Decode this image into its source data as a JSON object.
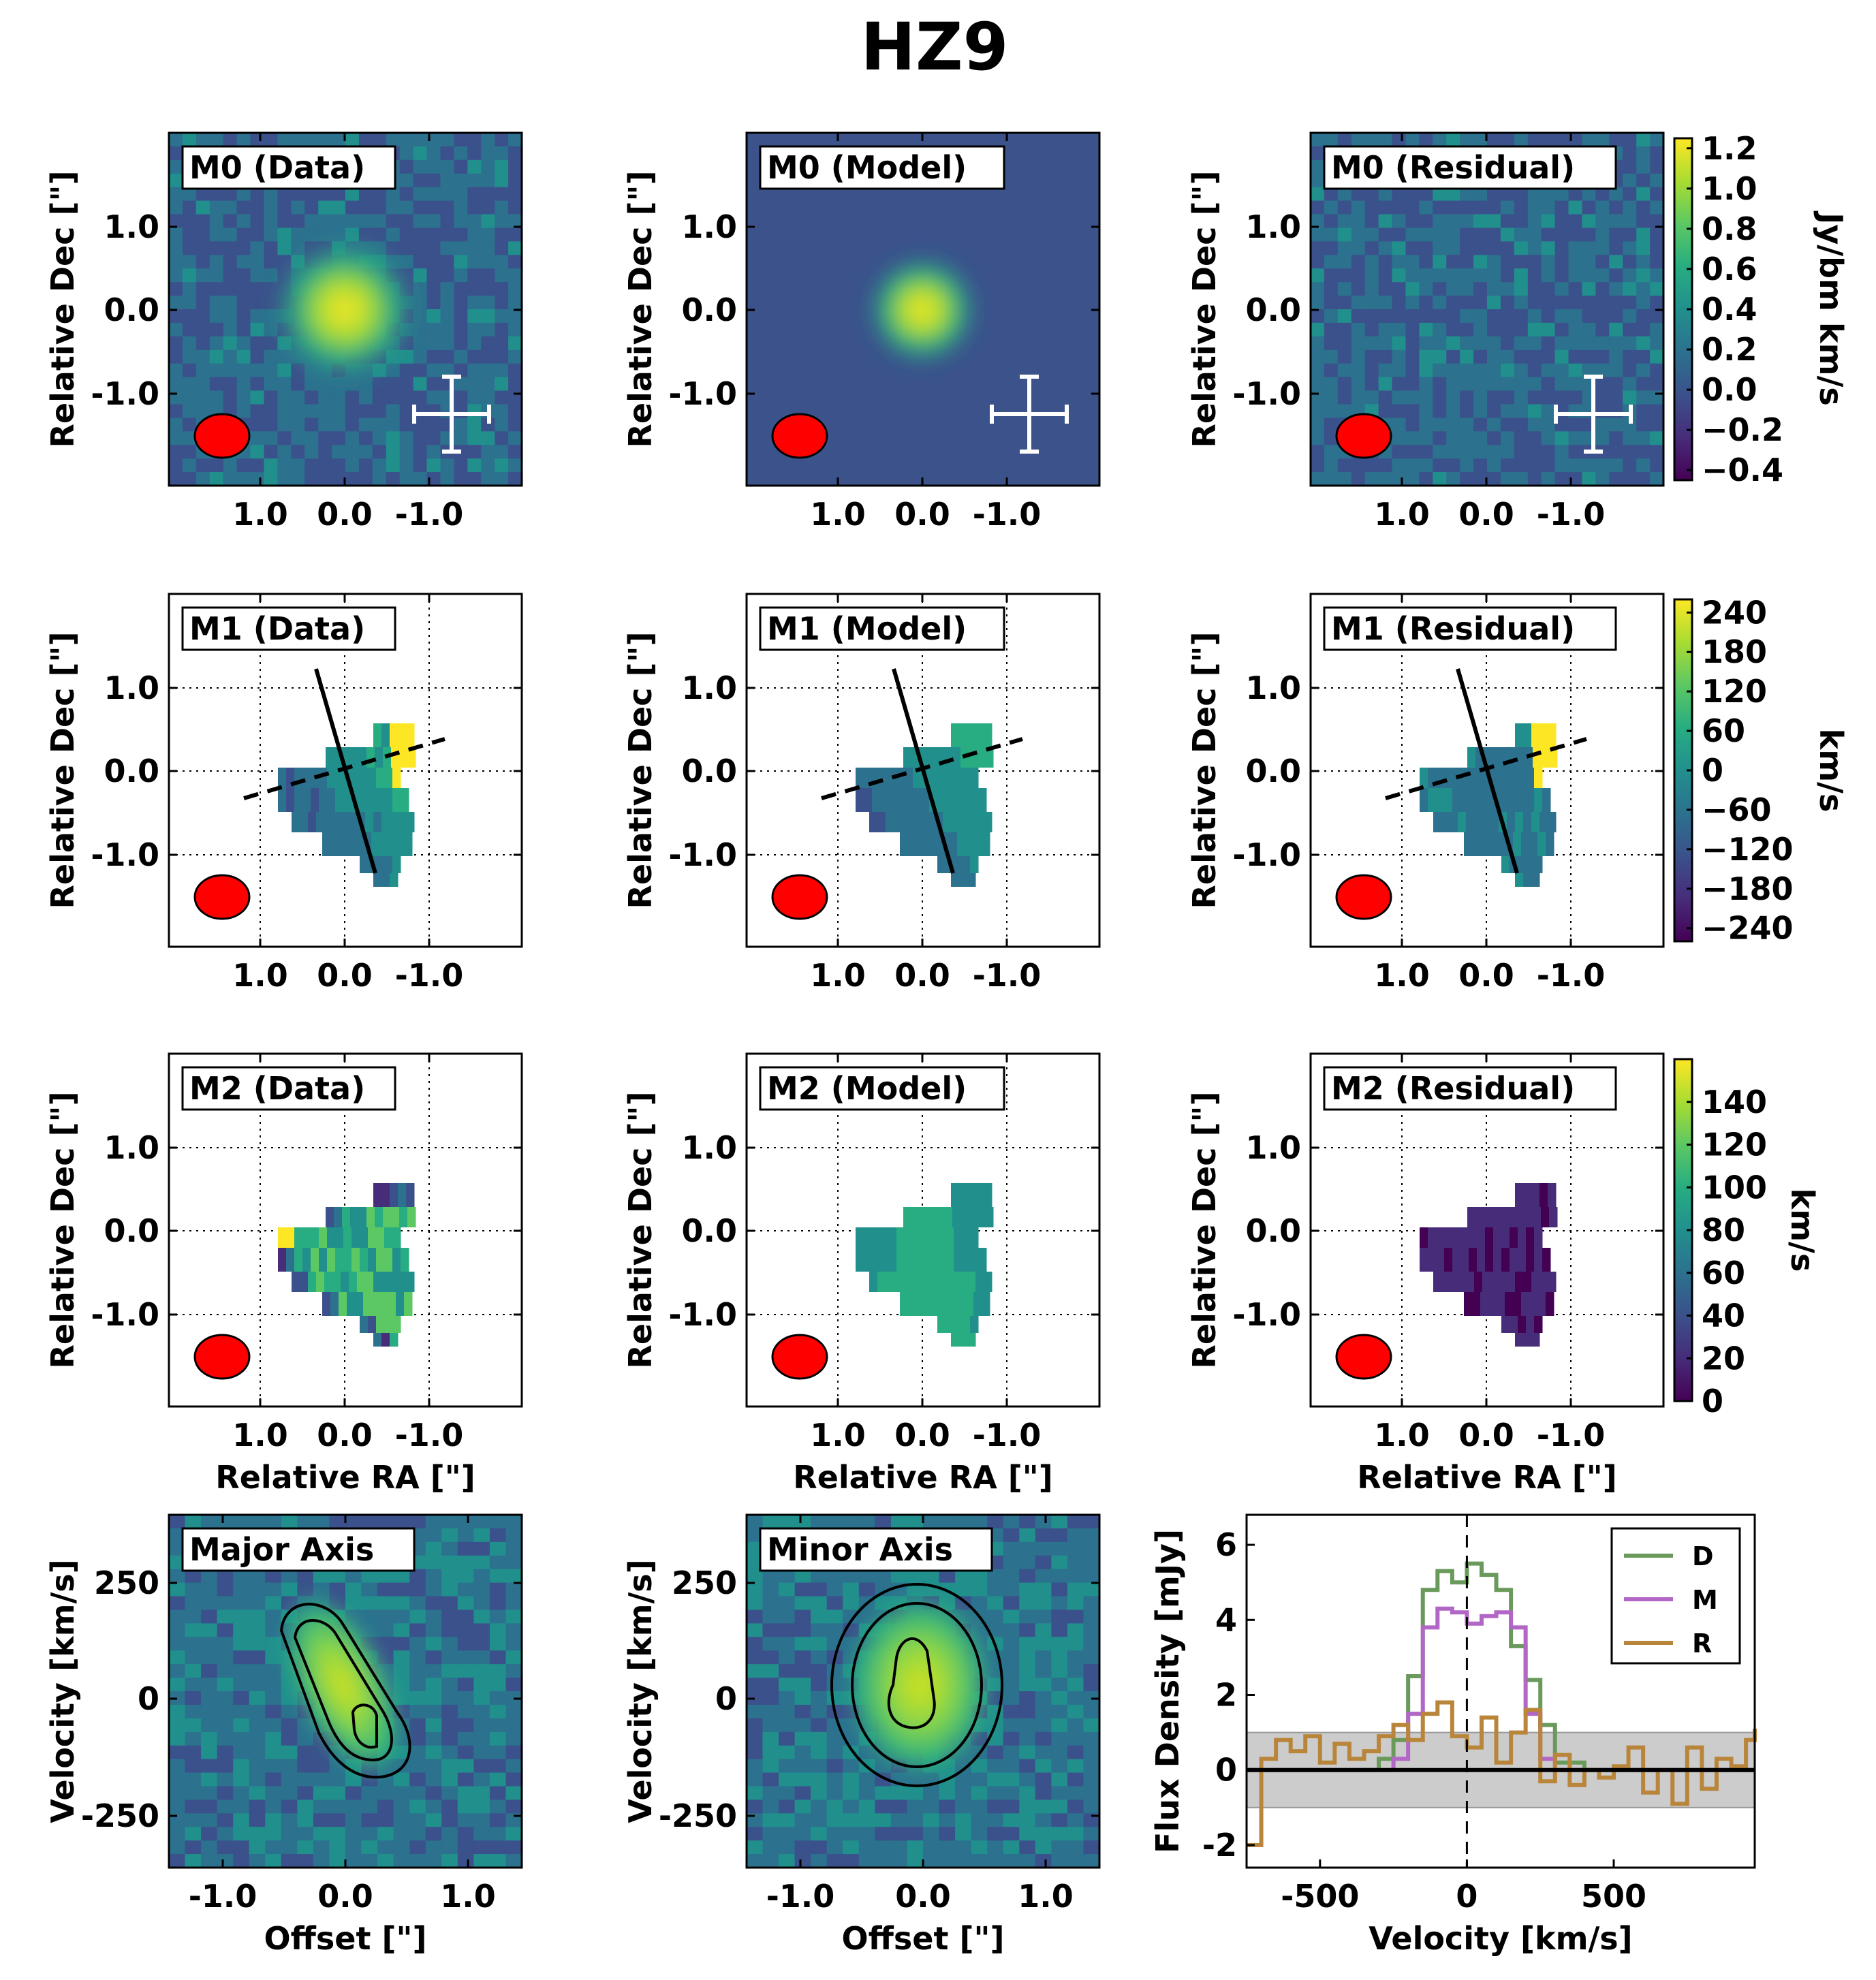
{
  "title": "HZ9",
  "colors": {
    "viridis": [
      "#440154",
      "#472c7a",
      "#3b518b",
      "#2c718e",
      "#21908d",
      "#27ad81",
      "#5cc863",
      "#aadc32",
      "#fde725"
    ],
    "beam": "#ff0000",
    "data_line": "#6a9a5b",
    "model_line": "#b267c6",
    "residual_line": "#b9853a",
    "noise_band": "#cccccc"
  },
  "moment_maps": {
    "ylabel": "Relative Dec [\"]",
    "xlabel": "Relative RA [\"]",
    "xticks": [
      "1.0",
      "0.0",
      "-1.0"
    ],
    "yticks": [
      "1.0",
      "0.0",
      "-1.0"
    ],
    "rows": [
      {
        "row": "M0",
        "panels": [
          "M0 (Data)",
          "M0 (Model)",
          "M0 (Residual)"
        ],
        "colorbar": {
          "label": "Jy/bm km/s",
          "ticks": [
            "1.2",
            "1.0",
            "0.8",
            "0.6",
            "0.4",
            "0.2",
            "0.0",
            "−0.2",
            "−0.4"
          ],
          "range": [
            -0.45,
            1.25
          ]
        }
      },
      {
        "row": "M1",
        "panels": [
          "M1 (Data)",
          "M1 (Model)",
          "M1 (Residual)"
        ],
        "colorbar": {
          "label": "km/s",
          "ticks": [
            "240",
            "180",
            "120",
            "60",
            "0",
            "−60",
            "−120",
            "−180",
            "−240"
          ],
          "range": [
            -260,
            260
          ]
        }
      },
      {
        "row": "M2",
        "panels": [
          "M2 (Data)",
          "M2 (Model)",
          "M2 (Residual)"
        ],
        "colorbar": {
          "label": "km/s",
          "ticks": [
            "140",
            "120",
            "100",
            "80",
            "60",
            "40",
            "20",
            "0"
          ],
          "range": [
            0,
            160
          ]
        }
      }
    ]
  },
  "pv_diagrams": {
    "ylabel": "Velocity [km/s]",
    "xlabel": "Offset [\"]",
    "xticks": [
      "-1.0",
      "0.0",
      "1.0"
    ],
    "yticks": [
      "250",
      "0",
      "-250"
    ],
    "panels": [
      "Major Axis",
      "Minor Axis"
    ]
  },
  "chart_data": {
    "type": "line",
    "ylabel": "Flux Density [mJy]",
    "xlabel": "Velocity [km/s]",
    "xlim": [
      -750,
      980
    ],
    "ylim": [
      -2.6,
      6.8
    ],
    "xticks": [
      "-500",
      "0",
      "500"
    ],
    "yticks": [
      "6",
      "4",
      "2",
      "0",
      "-2"
    ],
    "noise_band": [
      -1.0,
      1.0
    ],
    "legend_position": "top-right",
    "series": [
      {
        "name": "D",
        "x": [
          -750,
          -400,
          -300,
          -250,
          -200,
          -150,
          -100,
          -50,
          0,
          50,
          100,
          150,
          200,
          250,
          300,
          400,
          980
        ],
        "values": [
          0,
          0,
          0.3,
          0.8,
          2.5,
          4.8,
          5.3,
          5.0,
          5.5,
          5.2,
          4.8,
          3.3,
          2.4,
          1.2,
          0.2,
          0,
          0
        ]
      },
      {
        "name": "M",
        "x": [
          -750,
          -300,
          -250,
          -200,
          -150,
          -100,
          -50,
          0,
          50,
          100,
          150,
          200,
          250,
          300,
          980
        ],
        "values": [
          0,
          0,
          0.3,
          1.5,
          3.8,
          4.3,
          4.2,
          3.9,
          4.1,
          4.2,
          3.8,
          1.5,
          0.3,
          0,
          0
        ]
      },
      {
        "name": "R",
        "x": [
          -750,
          -700,
          -650,
          -600,
          -550,
          -500,
          -450,
          -400,
          -350,
          -300,
          -250,
          -200,
          -150,
          -100,
          -50,
          0,
          50,
          100,
          150,
          200,
          250,
          300,
          350,
          400,
          450,
          500,
          550,
          600,
          650,
          700,
          750,
          800,
          850,
          900,
          950,
          980
        ],
        "values": [
          -2.0,
          0.3,
          0.8,
          0.5,
          0.9,
          0.2,
          0.7,
          0.3,
          0.5,
          0.9,
          1.2,
          0.8,
          1.5,
          1.8,
          0.9,
          0.6,
          1.4,
          0.2,
          1.0,
          1.6,
          -0.3,
          0.4,
          -0.4,
          0.0,
          -0.2,
          0.1,
          0.6,
          -0.6,
          0.0,
          -0.9,
          0.6,
          -0.5,
          0.3,
          0.1,
          0.8,
          1.1
        ]
      }
    ]
  }
}
